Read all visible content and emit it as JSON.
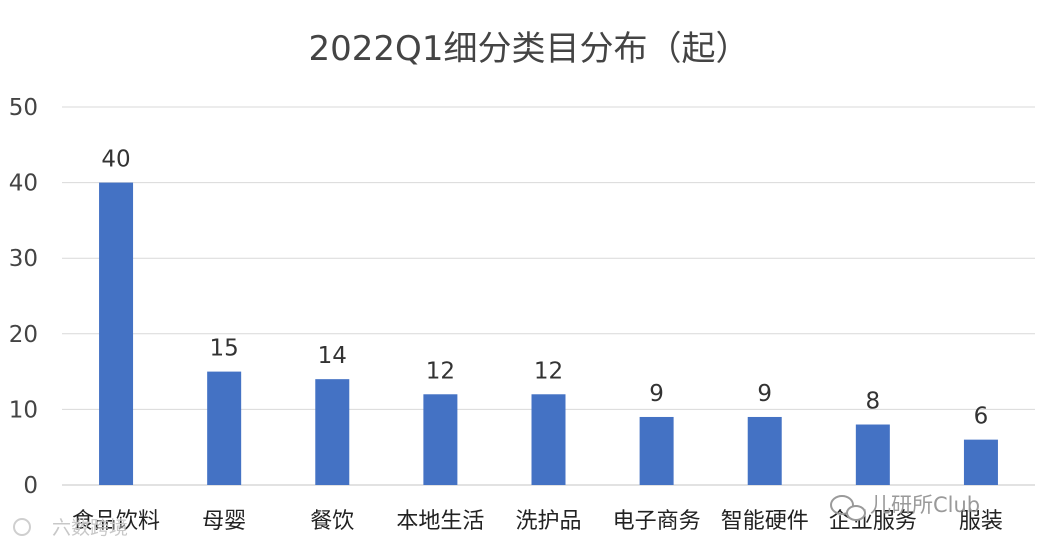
{
  "chart_data": {
    "type": "bar",
    "title": "2022Q1细分类目分布（起）",
    "categories": [
      "食品饮料",
      "母婴",
      "餐饮",
      "本地生活",
      "洗护品",
      "电子商务",
      "智能硬件",
      "企业服务",
      "服装"
    ],
    "values": [
      40,
      15,
      14,
      12,
      12,
      9,
      9,
      8,
      6
    ],
    "xlabel": "",
    "ylabel": "",
    "ylim": [
      0,
      50
    ],
    "yticks": [
      0,
      10,
      20,
      30,
      40,
      50
    ],
    "grid": true,
    "data_labels": true,
    "legend": "none",
    "bar_color": "#4472c4",
    "grid_color": "#d9d9d9"
  },
  "watermarks": {
    "left": "六数跨境",
    "right": "儿研所Club"
  }
}
